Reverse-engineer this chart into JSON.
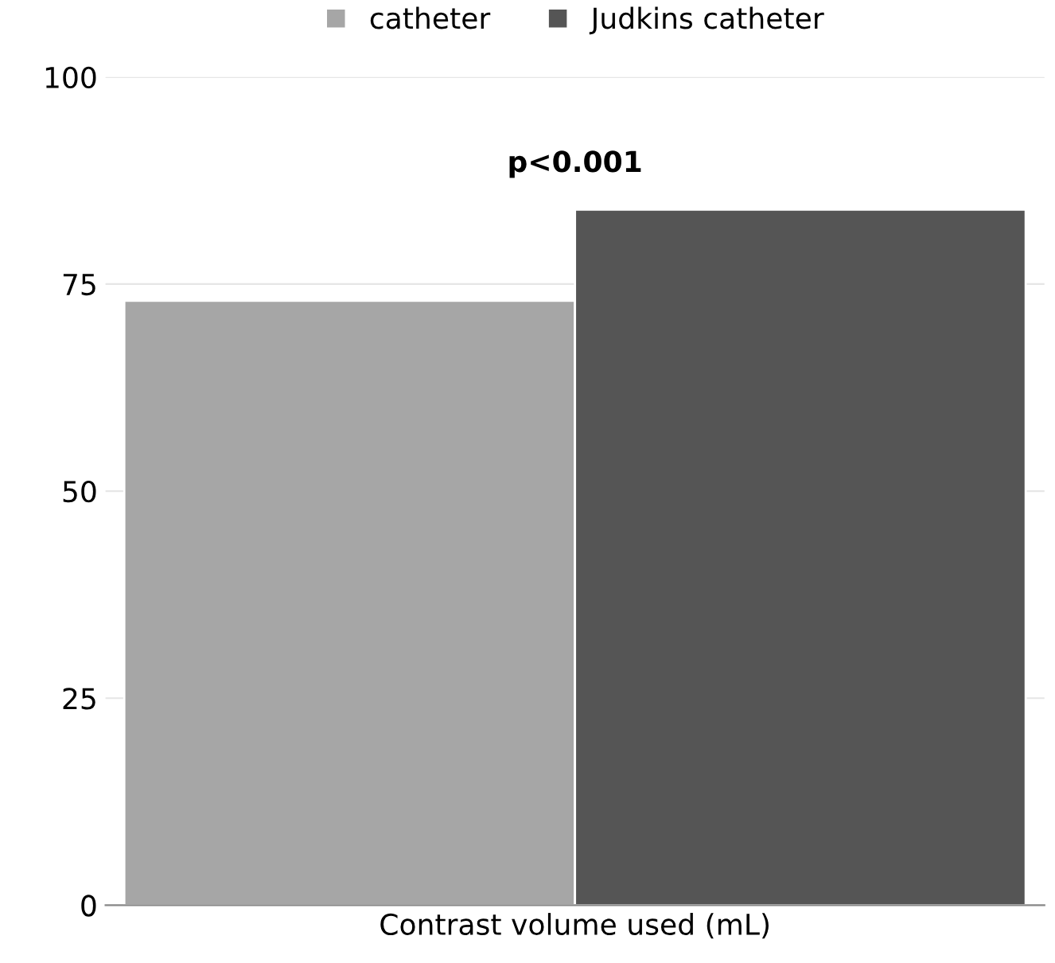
{
  "chart_data": {
    "type": "bar",
    "categories": [
      "Contrast volume used (mL)"
    ],
    "series": [
      {
        "name": "catheter",
        "color": "#a6a6a6",
        "values": [
          73
        ]
      },
      {
        "name": "Judkins catheter",
        "color": "#555555",
        "values": [
          84
        ]
      }
    ],
    "ylim": [
      0,
      100
    ],
    "yticks": [
      0,
      25,
      50,
      75,
      100
    ],
    "grid": "y",
    "legend": "top",
    "annotations": [
      "p<0.001"
    ]
  }
}
